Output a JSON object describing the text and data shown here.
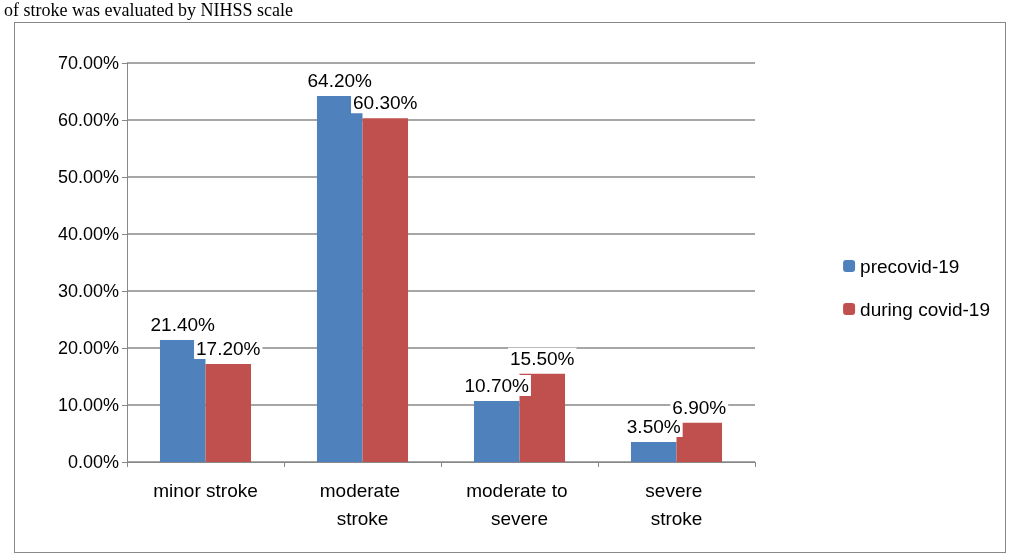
{
  "chart_data": {
    "type": "bar",
    "annotations": [
      "of stroke was evaluated by NIHSS scale"
    ],
    "categories": [
      "minor stroke",
      "moderate stroke",
      "moderate to severe",
      "severe stroke"
    ],
    "series": [
      {
        "name": "precovid-19",
        "color": "#4f81bd",
        "values": [
          21.4,
          64.2,
          10.7,
          3.5
        ],
        "value_labels": [
          "21.40%",
          "64.20%",
          "10.70%",
          "3.50%"
        ]
      },
      {
        "name": "during covid-19",
        "color": "#c0504d",
        "values": [
          17.2,
          60.3,
          15.5,
          6.9
        ],
        "value_labels": [
          "17.20%",
          "60.30%",
          "15.50%",
          "6.90%"
        ]
      }
    ],
    "ylim": [
      0,
      70
    ],
    "yticks": [
      {
        "value": 0,
        "label": "0.00%"
      },
      {
        "value": 10,
        "label": "10.00%"
      },
      {
        "value": 20,
        "label": "20.00%"
      },
      {
        "value": 30,
        "label": "30.00%"
      },
      {
        "value": 40,
        "label": "40.00%"
      },
      {
        "value": 50,
        "label": "50.00%"
      },
      {
        "value": 60,
        "label": "60.00%"
      },
      {
        "value": 70,
        "label": "70.00%"
      }
    ],
    "grid": true,
    "legend": "right"
  }
}
